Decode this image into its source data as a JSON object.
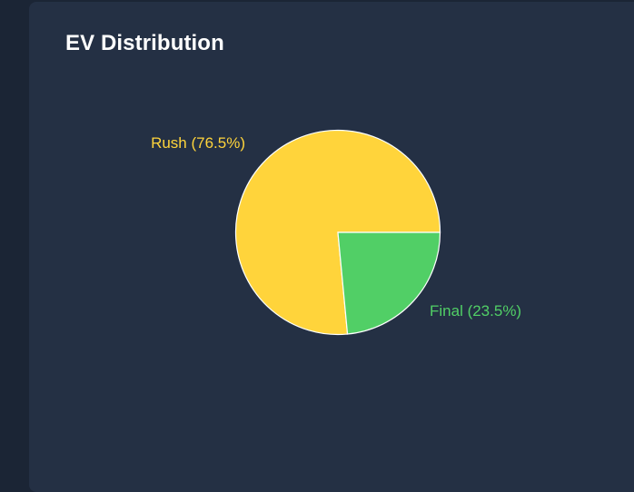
{
  "card": {
    "title": "EV Distribution"
  },
  "chart_data": {
    "type": "pie",
    "title": "EV Distribution",
    "slices": [
      {
        "name": "Rush",
        "value": 76.5,
        "label": "Rush (76.5%)",
        "color": "#ffd43b"
      },
      {
        "name": "Final",
        "value": 23.5,
        "label": "Final (23.5%)",
        "color": "#51cf66"
      }
    ],
    "start_angle": "3 o'clock, counterclockwise for Rush",
    "stroke_color": "#ffffff",
    "legend": "none"
  }
}
